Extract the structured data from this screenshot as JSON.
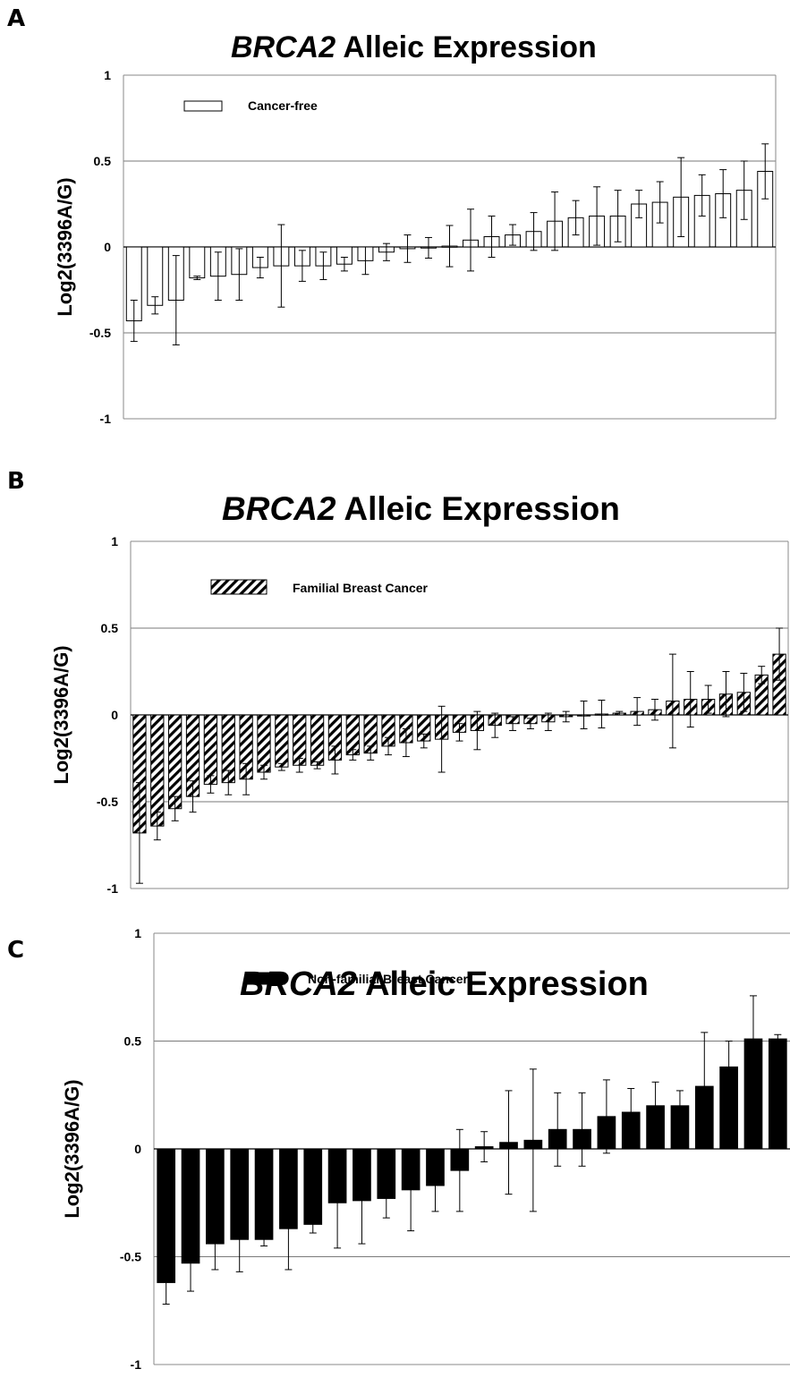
{
  "chart_data": [
    {
      "type": "bar",
      "panel_label": "A",
      "title": {
        "gene": "BRCA2",
        "rest": "Alleic Expression"
      },
      "ylabel": "Log2(3396A/G)",
      "ylim": [
        -1,
        1
      ],
      "yticks": [
        "1",
        "0.5",
        "0",
        "-0.5",
        "-1"
      ],
      "gridlines": [
        0.5,
        -0.5
      ],
      "legend": {
        "label": "Cancer-free",
        "placement": "top-left"
      },
      "fill": "open",
      "series": [
        {
          "name": "Cancer-free",
          "values": [
            -0.43,
            -0.34,
            -0.31,
            -0.18,
            -0.17,
            -0.16,
            -0.12,
            -0.11,
            -0.11,
            -0.11,
            -0.1,
            -0.08,
            -0.03,
            -0.01,
            -0.005,
            0.005,
            0.04,
            0.06,
            0.07,
            0.09,
            0.15,
            0.17,
            0.18,
            0.18,
            0.25,
            0.26,
            0.29,
            0.3,
            0.31,
            0.33,
            0.44
          ],
          "errors": [
            0.12,
            0.05,
            0.26,
            0.01,
            0.14,
            0.15,
            0.06,
            0.24,
            0.09,
            0.08,
            0.04,
            0.08,
            0.05,
            0.08,
            0.06,
            0.12,
            0.18,
            0.12,
            0.06,
            0.11,
            0.17,
            0.1,
            0.17,
            0.15,
            0.08,
            0.12,
            0.23,
            0.12,
            0.14,
            0.17,
            0.16
          ]
        }
      ]
    },
    {
      "type": "bar",
      "panel_label": "B",
      "title": {
        "gene": "BRCA2",
        "rest": "Alleic Expression"
      },
      "ylabel": "Log2(3396A/G)",
      "ylim": [
        -1,
        1
      ],
      "yticks": [
        "1",
        "0.5",
        "0",
        "-0.5",
        "-1"
      ],
      "gridlines": [
        0.5,
        -0.5
      ],
      "legend": {
        "label": "Familial Breast Cancer",
        "placement": "top-left"
      },
      "fill": "hatched",
      "series": [
        {
          "name": "Familial Breast Cancer",
          "values": [
            -0.68,
            -0.64,
            -0.54,
            -0.47,
            -0.4,
            -0.39,
            -0.37,
            -0.33,
            -0.3,
            -0.29,
            -0.29,
            -0.26,
            -0.23,
            -0.22,
            -0.18,
            -0.16,
            -0.15,
            -0.14,
            -0.1,
            -0.09,
            -0.06,
            -0.05,
            -0.05,
            -0.04,
            -0.01,
            0.0,
            0.005,
            0.01,
            0.02,
            0.03,
            0.08,
            0.09,
            0.09,
            0.12,
            0.13,
            0.23,
            0.35
          ],
          "errors": [
            0.29,
            0.08,
            0.07,
            0.09,
            0.05,
            0.07,
            0.09,
            0.04,
            0.02,
            0.04,
            0.02,
            0.08,
            0.03,
            0.04,
            0.05,
            0.08,
            0.04,
            0.19,
            0.05,
            0.11,
            0.07,
            0.04,
            0.03,
            0.05,
            0.03,
            0.08,
            0.08,
            0.01,
            0.08,
            0.06,
            0.27,
            0.16,
            0.08,
            0.13,
            0.11,
            0.05,
            0.15
          ]
        }
      ]
    },
    {
      "type": "bar",
      "panel_label": "C",
      "title": {
        "gene": "BRCA2",
        "rest": "Alleic Expression"
      },
      "ylabel": "Log2(3396A/G)",
      "ylim": [
        -1,
        1
      ],
      "yticks": [
        "1",
        "0.5",
        "0",
        "-0.5",
        "-1"
      ],
      "gridlines": [
        0.5,
        -0.5
      ],
      "legend": {
        "label": "Non-familial Breast Cancer",
        "placement": "top-left"
      },
      "fill": "solid",
      "series": [
        {
          "name": "Non-familial Breast Cancer",
          "values": [
            -0.62,
            -0.53,
            -0.44,
            -0.42,
            -0.42,
            -0.37,
            -0.35,
            -0.25,
            -0.24,
            -0.23,
            -0.19,
            -0.17,
            -0.1,
            0.01,
            0.03,
            0.04,
            0.09,
            0.09,
            0.15,
            0.17,
            0.2,
            0.2,
            0.29,
            0.38,
            0.51,
            0.51
          ],
          "errors": [
            0.1,
            0.13,
            0.12,
            0.15,
            0.03,
            0.19,
            0.04,
            0.21,
            0.2,
            0.09,
            0.19,
            0.12,
            0.19,
            0.07,
            0.24,
            0.33,
            0.17,
            0.17,
            0.17,
            0.11,
            0.11,
            0.07,
            0.25,
            0.12,
            0.2,
            0.02
          ]
        }
      ]
    }
  ]
}
